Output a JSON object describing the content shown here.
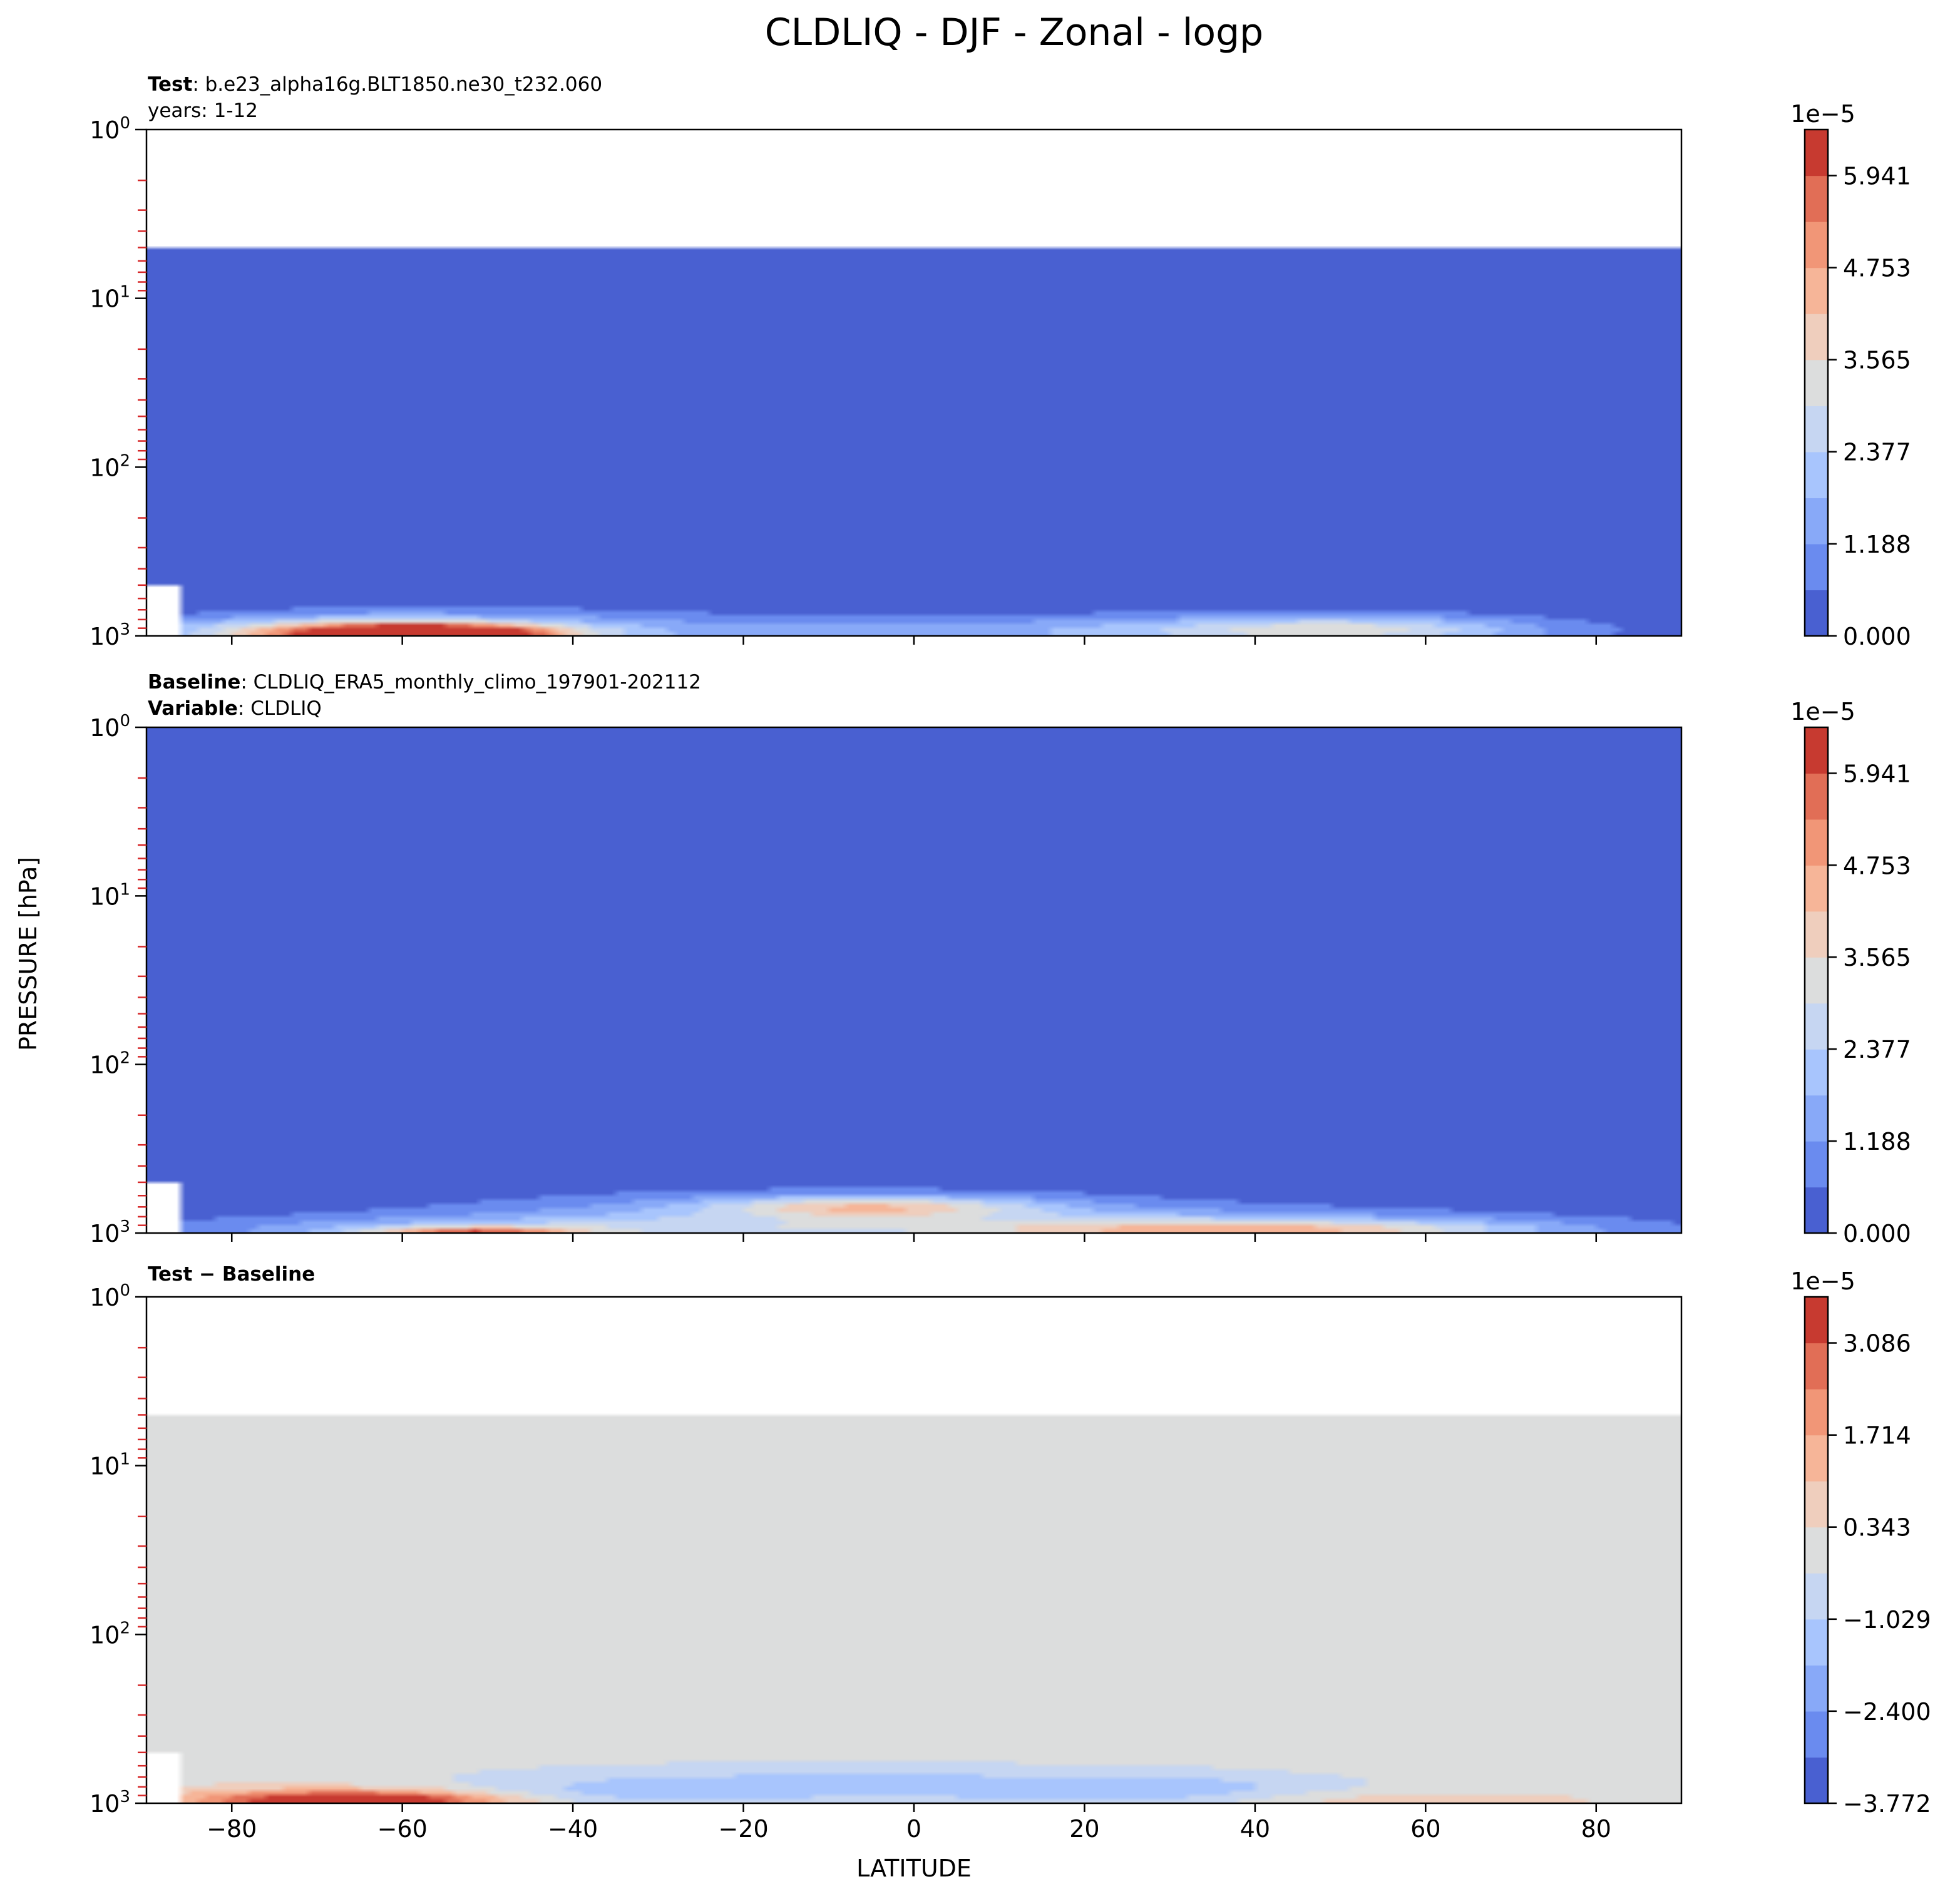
{
  "figure": {
    "title": "CLDLIQ - DJF - Zonal - logp",
    "ylabel": "PRESSURE [hPa]",
    "xlabel": "LATITUDE"
  },
  "chart_data": [
    {
      "type": "heatmap",
      "header": [
        {
          "bold": "Test",
          "text": ": b.e23_alpha16g.BLT1850.ne30_t232.060"
        },
        {
          "bold": "",
          "text": "years: 1-12"
        }
      ],
      "x_range": [
        -90,
        90
      ],
      "x_ticks": [
        "−80",
        "−60",
        "−40",
        "−20",
        "0",
        "20",
        "40",
        "60",
        "80"
      ],
      "x_tick_values": [
        -80,
        -60,
        -40,
        -20,
        0,
        20,
        40,
        60,
        80
      ],
      "y_scale": "log",
      "y_inverted": true,
      "y_range": [
        1,
        1000
      ],
      "y_ticks": [
        {
          "base": "10",
          "exp": "0",
          "value": 1
        },
        {
          "base": "10",
          "exp": "1",
          "value": 10
        },
        {
          "base": "10",
          "exp": "2",
          "value": 100
        },
        {
          "base": "10",
          "exp": "3",
          "value": 1000
        }
      ],
      "model_top_hPa": 5,
      "background_level": 0,
      "features": [
        {
          "lat": -57,
          "p": 970,
          "value": 6.2,
          "wlat": 14,
          "wlogp": 0.05
        },
        {
          "lat": -65,
          "p": 960,
          "value": 3.5,
          "wlat": 22,
          "wlogp": 0.08
        },
        {
          "lat": -55,
          "p": 930,
          "value": 1.5,
          "wlat": 35,
          "wlogp": 0.14
        },
        {
          "lat": 50,
          "p": 920,
          "value": 2.5,
          "wlat": 22,
          "wlogp": 0.08
        },
        {
          "lat": 30,
          "p": 930,
          "value": 1.0,
          "wlat": 50,
          "wlogp": 0.12
        },
        {
          "lat": 0,
          "p": 960,
          "value": 0.8,
          "wlat": 35,
          "wlogp": 0.08
        }
      ],
      "colorbar": {
        "exponent": "1e−5",
        "range": [
          0,
          6.535
        ],
        "ticks": [
          {
            "label": "0.000",
            "value": 0
          },
          {
            "label": "1.188",
            "value": 1.188
          },
          {
            "label": "2.377",
            "value": 2.377
          },
          {
            "label": "3.565",
            "value": 3.565
          },
          {
            "label": "4.753",
            "value": 4.753
          },
          {
            "label": "5.941",
            "value": 5.941
          }
        ],
        "colors": [
          "#4960d1",
          "#6a8bef",
          "#88a9f8",
          "#a8c5fd",
          "#c6d6f2",
          "#dcdddd",
          "#efcebd",
          "#f6b598",
          "#f19677",
          "#e16e56",
          "#c73a30"
        ]
      }
    },
    {
      "type": "heatmap",
      "header": [
        {
          "bold": "Baseline",
          "text": ": CLDLIQ_ERA5_monthly_climo_197901-202112"
        },
        {
          "bold": "Variable",
          "text": ": CLDLIQ"
        }
      ],
      "x_range": [
        -90,
        90
      ],
      "x_ticks": [
        "−80",
        "−60",
        "−40",
        "−20",
        "0",
        "20",
        "40",
        "60",
        "80"
      ],
      "x_tick_values": [
        -80,
        -60,
        -40,
        -20,
        0,
        20,
        40,
        60,
        80
      ],
      "y_scale": "log",
      "y_inverted": true,
      "y_range": [
        1,
        1000
      ],
      "y_ticks": [
        {
          "base": "10",
          "exp": "0",
          "value": 1
        },
        {
          "base": "10",
          "exp": "1",
          "value": 10
        },
        {
          "base": "10",
          "exp": "2",
          "value": 100
        },
        {
          "base": "10",
          "exp": "3",
          "value": 1000
        }
      ],
      "model_top_hPa": 1,
      "background_level": 0,
      "features": [
        {
          "lat": -52,
          "p": 985,
          "value": 3.8,
          "wlat": 12,
          "wlogp": 0.03
        },
        {
          "lat": -40,
          "p": 960,
          "value": 1.8,
          "wlat": 45,
          "wlogp": 0.08
        },
        {
          "lat": -5,
          "p": 700,
          "value": 2.6,
          "wlat": 18,
          "wlogp": 0.06
        },
        {
          "lat": -10,
          "p": 720,
          "value": 1.1,
          "wlat": 40,
          "wlogp": 0.12
        },
        {
          "lat": 40,
          "p": 920,
          "value": 1.8,
          "wlat": 40,
          "wlogp": 0.08
        },
        {
          "lat": 40,
          "p": 970,
          "value": 2.3,
          "wlat": 30,
          "wlogp": 0.05
        },
        {
          "lat": 0,
          "p": 900,
          "value": 0.9,
          "wlat": 70,
          "wlogp": 0.16
        }
      ],
      "colorbar": {
        "exponent": "1e−5",
        "range": [
          0,
          6.535
        ],
        "ticks": [
          {
            "label": "0.000",
            "value": 0
          },
          {
            "label": "1.188",
            "value": 1.188
          },
          {
            "label": "2.377",
            "value": 2.377
          },
          {
            "label": "3.565",
            "value": 3.565
          },
          {
            "label": "4.753",
            "value": 4.753
          },
          {
            "label": "5.941",
            "value": 5.941
          }
        ],
        "colors": [
          "#4960d1",
          "#6a8bef",
          "#88a9f8",
          "#a8c5fd",
          "#c6d6f2",
          "#dcdddd",
          "#efcebd",
          "#f6b598",
          "#f19677",
          "#e16e56",
          "#c73a30"
        ]
      }
    },
    {
      "type": "heatmap",
      "header": [
        {
          "bold": "Test − Baseline",
          "text": ""
        }
      ],
      "x_range": [
        -90,
        90
      ],
      "x_ticks": [
        "−80",
        "−60",
        "−40",
        "−20",
        "0",
        "20",
        "40",
        "60",
        "80"
      ],
      "x_tick_values": [
        -80,
        -60,
        -40,
        -20,
        0,
        20,
        40,
        60,
        80
      ],
      "y_scale": "log",
      "y_inverted": true,
      "y_range": [
        1,
        1000
      ],
      "y_ticks": [
        {
          "base": "10",
          "exp": "0",
          "value": 1
        },
        {
          "base": "10",
          "exp": "1",
          "value": 10
        },
        {
          "base": "10",
          "exp": "2",
          "value": 100
        },
        {
          "base": "10",
          "exp": "3",
          "value": 1000
        }
      ],
      "model_top_hPa": 5,
      "background_level": 0,
      "features": [
        {
          "lat": -65,
          "p": 960,
          "value": 3.7,
          "wlat": 16,
          "wlogp": 0.05
        },
        {
          "lat": -65,
          "p": 940,
          "value": 1.5,
          "wlat": 28,
          "wlogp": 0.09
        },
        {
          "lat": 55,
          "p": 960,
          "value": 0.9,
          "wlat": 25,
          "wlogp": 0.06
        },
        {
          "lat": -10,
          "p": 780,
          "value": -1.3,
          "wlat": 45,
          "wlogp": 0.12
        },
        {
          "lat": 30,
          "p": 860,
          "value": -1.1,
          "wlat": 20,
          "wlogp": 0.1
        },
        {
          "lat": -40,
          "p": 900,
          "value": -1.0,
          "wlat": 20,
          "wlogp": 0.08
        }
      ],
      "colorbar": {
        "exponent": "1e−5",
        "range": [
          -3.772,
          3.772
        ],
        "ticks": [
          {
            "label": "−3.772",
            "value": -3.772
          },
          {
            "label": "−2.400",
            "value": -2.4
          },
          {
            "label": "−1.029",
            "value": -1.029
          },
          {
            "label": "0.343",
            "value": 0.343
          },
          {
            "label": "1.714",
            "value": 1.714
          },
          {
            "label": "3.086",
            "value": 3.086
          }
        ],
        "colors": [
          "#4960d1",
          "#6a8bef",
          "#88a9f8",
          "#a8c5fd",
          "#c6d6f2",
          "#dcdddd",
          "#efcebd",
          "#f6b598",
          "#f19677",
          "#e16e56",
          "#c73a30"
        ]
      }
    }
  ]
}
